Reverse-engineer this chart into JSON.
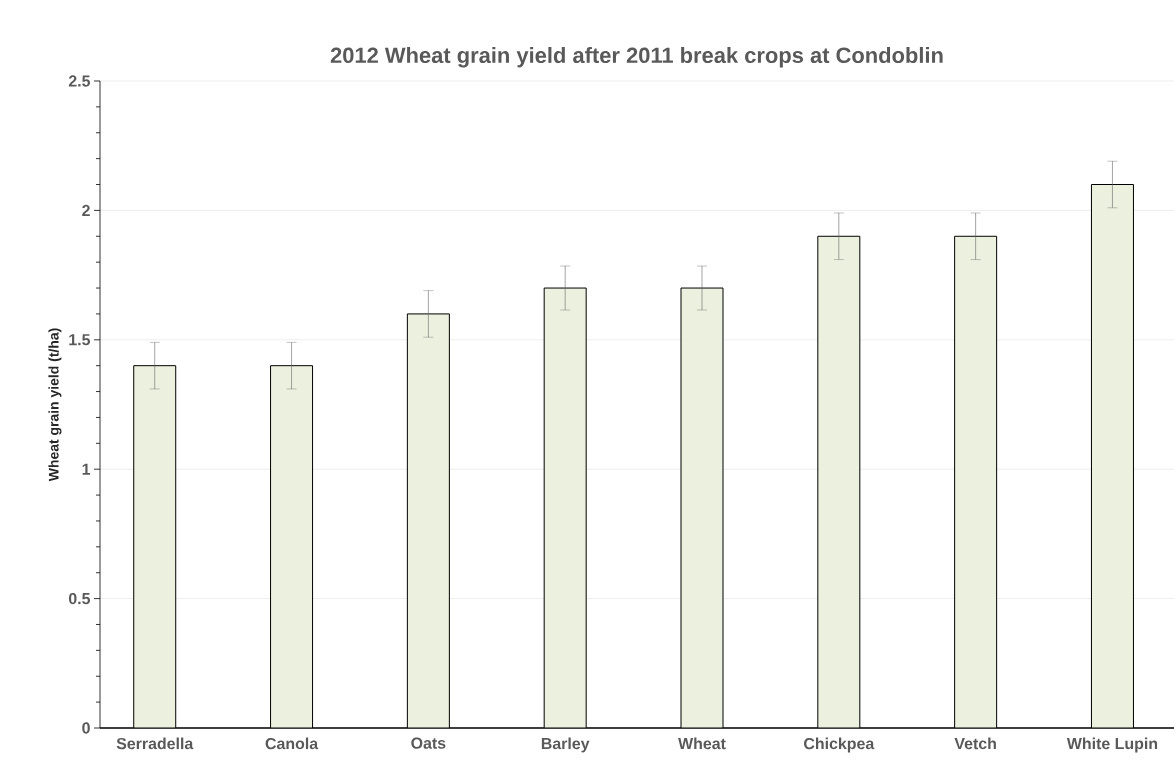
{
  "chart_data": {
    "type": "bar",
    "title": "2012 Wheat grain yield after 2011 break crops at Condoblin",
    "ylabel": "Wheat grain yield (t/ha)",
    "categories": [
      "Serradella",
      "Canola",
      "Oats",
      "Barley",
      "Wheat",
      "Chickpea",
      "Vetch",
      "White Lupin"
    ],
    "values": [
      1.4,
      1.4,
      1.6,
      1.7,
      1.7,
      1.9,
      1.9,
      2.1
    ],
    "errors": [
      0.09,
      0.09,
      0.09,
      0.085,
      0.085,
      0.09,
      0.09,
      0.09
    ],
    "color": "#ebf1de",
    "ylim": [
      0,
      2.5
    ],
    "yticks": [
      0,
      0.5,
      1,
      1.5,
      2,
      2.5
    ],
    "grid": "y"
  }
}
